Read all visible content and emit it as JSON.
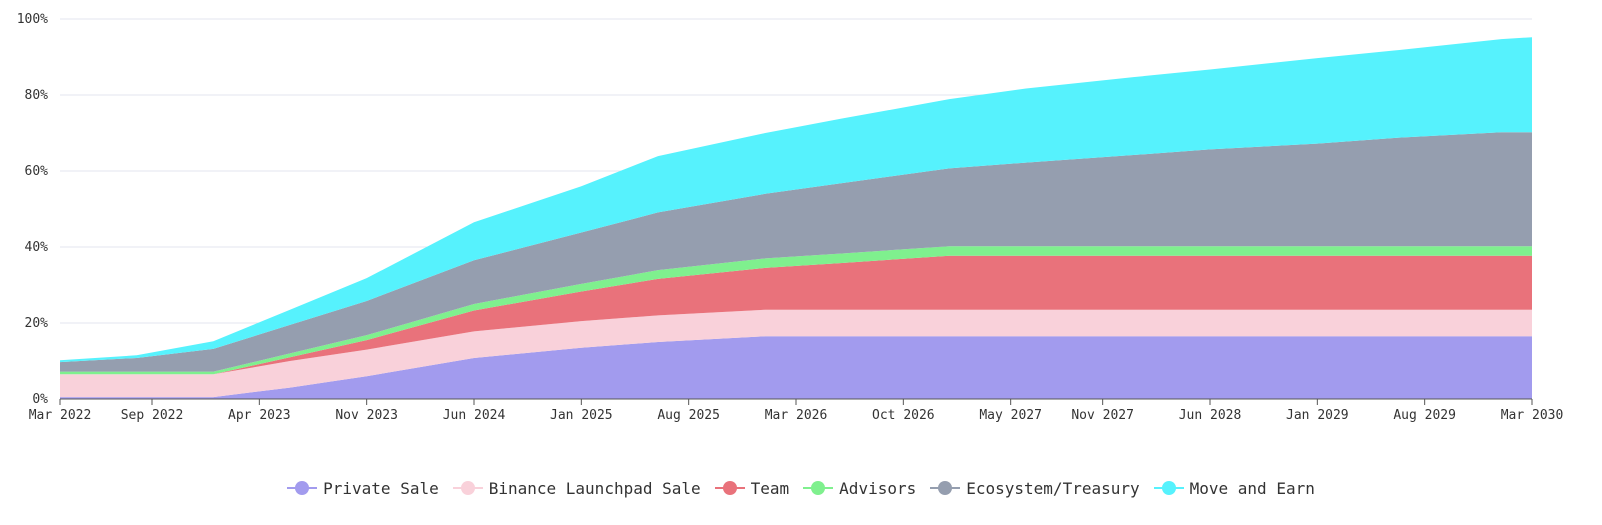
{
  "chart_data": {
    "type": "area",
    "stacked": true,
    "title": "",
    "xlabel": "",
    "ylabel": "",
    "ylim": [
      0,
      100
    ],
    "y_ticks": [
      "0%",
      "20%",
      "40%",
      "60%",
      "80%",
      "100%"
    ],
    "y_tick_values": [
      0,
      20,
      40,
      60,
      80,
      100
    ],
    "x_ticks": [
      "Mar 2022",
      "Sep 2022",
      "Apr 2023",
      "Nov 2023",
      "Jun 2024",
      "Jan 2025",
      "Aug 2025",
      "Mar 2026",
      "Oct 2026",
      "May 2027",
      "Nov 2027",
      "Jun 2028",
      "Jan 2029",
      "Aug 2029",
      "Mar 2030"
    ],
    "x_tick_values": [
      "2022-03",
      "2022-09",
      "2023-04",
      "2023-11",
      "2024-06",
      "2025-01",
      "2025-08",
      "2026-03",
      "2026-10",
      "2027-05",
      "2027-11",
      "2028-06",
      "2029-01",
      "2029-08",
      "2030-03"
    ],
    "xlim": [
      "2022-03",
      "2030-03"
    ],
    "grid": "horizontal",
    "legend_position": "bottom-center",
    "x": [
      "2022-03",
      "2022-08",
      "2023-01",
      "2023-06",
      "2023-11",
      "2024-06",
      "2025-01",
      "2025-06",
      "2026-01",
      "2026-06",
      "2027-01",
      "2027-06",
      "2028-01",
      "2028-06",
      "2029-01",
      "2029-06",
      "2030-01",
      "2030-03"
    ],
    "series": [
      {
        "name": "Private Sale",
        "color": "#a29bee",
        "values": [
          0.5,
          0.5,
          0.5,
          3,
          6,
          10.8,
          13.5,
          15,
          16.5,
          16.5,
          16.5,
          16.5,
          16.5,
          16.5,
          16.5,
          16.5,
          16.5,
          16.5
        ]
      },
      {
        "name": "Binance Launchpad Sale",
        "color": "#f9d1da",
        "values": [
          6,
          6,
          6,
          7,
          7,
          7,
          7,
          7,
          7,
          7,
          7,
          7,
          7,
          7,
          7,
          7,
          7,
          7
        ]
      },
      {
        "name": "Team",
        "color": "#e9727b",
        "values": [
          0,
          0,
          0,
          1,
          2.5,
          5.5,
          7.8,
          9.6,
          11,
          12.3,
          14.2,
          14.2,
          14.2,
          14.2,
          14.2,
          14.2,
          14.2,
          14.2
        ]
      },
      {
        "name": "Advisors",
        "color": "#7ff08e",
        "values": [
          0.7,
          0.7,
          0.7,
          1,
          1.3,
          1.7,
          2,
          2.3,
          2.5,
          2.5,
          2.5,
          2.5,
          2.5,
          2.5,
          2.5,
          2.5,
          2.5,
          2.5
        ]
      },
      {
        "name": "Ecosystem/Treasury",
        "color": "#959eaf",
        "values": [
          2.5,
          3.6,
          6,
          7.5,
          9,
          11.5,
          13.5,
          15.2,
          17,
          18.5,
          20.5,
          22,
          24,
          25.5,
          27,
          28.5,
          30,
          30
        ]
      },
      {
        "name": "Move and Earn",
        "color": "#56f2fd",
        "values": [
          0.5,
          0.7,
          2,
          4,
          6,
          10,
          12.2,
          14.8,
          16,
          17,
          18.2,
          19.5,
          20.5,
          21,
          22.5,
          23,
          24.5,
          25
        ]
      }
    ]
  }
}
